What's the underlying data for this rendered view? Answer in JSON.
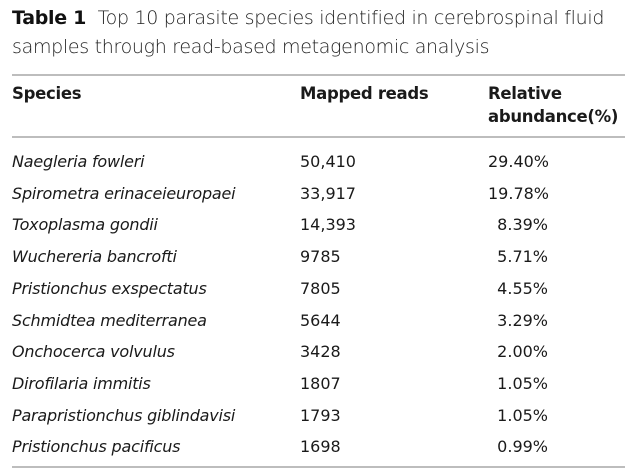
{
  "caption": {
    "label": "Table 1",
    "text": "Top 10 parasite species identified in cerebrospinal fluid samples through read-based metagenomic analysis"
  },
  "columns": [
    "Species",
    "Mapped reads",
    "Relative abundance(%)"
  ],
  "rows": [
    {
      "species": "Naegleria fowleri",
      "reads": "50,410",
      "abundance": "29.40%"
    },
    {
      "species": "Spirometra erinaceieuropaei",
      "reads": "33,917",
      "abundance": "19.78%"
    },
    {
      "species": "Toxoplasma gondii",
      "reads": "14,393",
      "abundance": "8.39%"
    },
    {
      "species": "Wuchereria bancrofti",
      "reads": "9785",
      "abundance": "5.71%"
    },
    {
      "species": "Pristionchus exspectatus",
      "reads": "7805",
      "abundance": "4.55%"
    },
    {
      "species": "Schmidtea mediterranea",
      "reads": "5644",
      "abundance": "3.29%"
    },
    {
      "species": "Onchocerca volvulus",
      "reads": "3428",
      "abundance": "2.00%"
    },
    {
      "species": "Dirofilaria immitis",
      "reads": "1807",
      "abundance": "1.05%"
    },
    {
      "species": "Parapristionchus giblindavisi",
      "reads": "1793",
      "abundance": "1.05%"
    },
    {
      "species": "Pristionchus pacificus",
      "reads": "1698",
      "abundance": "0.99%"
    }
  ]
}
